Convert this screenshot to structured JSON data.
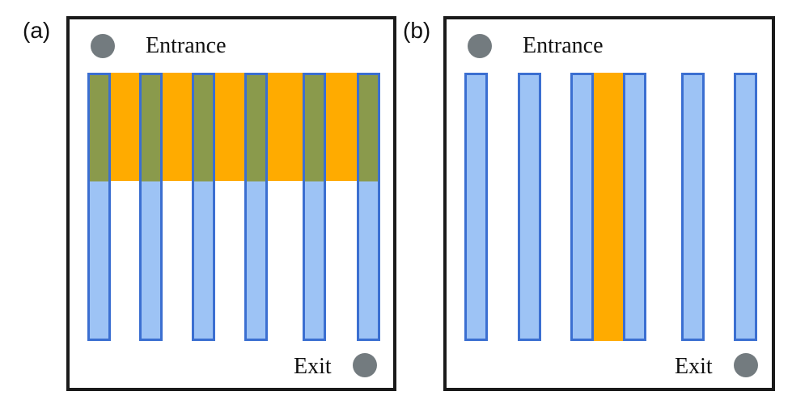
{
  "colors": {
    "shelf_fill": "#9dc3f5",
    "shelf_border": "#3b6fd1",
    "zone_fill": "#ffab00",
    "overlap_fill": "#8a9a4c",
    "marker_fill": "#737b7f",
    "frame": "#1a1a1a"
  },
  "panels": [
    {
      "label": "(a)",
      "entrance_label": "Entrance",
      "exit_label": "Exit",
      "highlight": "horizontal-band-top"
    },
    {
      "label": "(b)",
      "entrance_label": "Entrance",
      "exit_label": "Exit",
      "highlight": "vertical-aisle-center"
    }
  ]
}
